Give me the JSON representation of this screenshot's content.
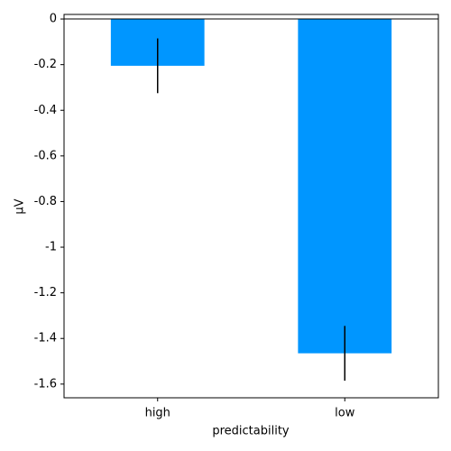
{
  "chart_data": {
    "type": "bar",
    "categories": [
      "high",
      "low"
    ],
    "values": [
      -0.205,
      -1.465
    ],
    "errors": [
      0.12,
      0.12
    ],
    "color": "#0096ff",
    "xlabel": "predictability",
    "ylabel": "μV",
    "ylim": [
      0.02,
      -1.66
    ],
    "yticks": [
      0,
      -0.2,
      -0.4,
      -0.6,
      -0.8,
      -1,
      -1.2,
      -1.4,
      -1.6
    ],
    "zero_line": true
  }
}
